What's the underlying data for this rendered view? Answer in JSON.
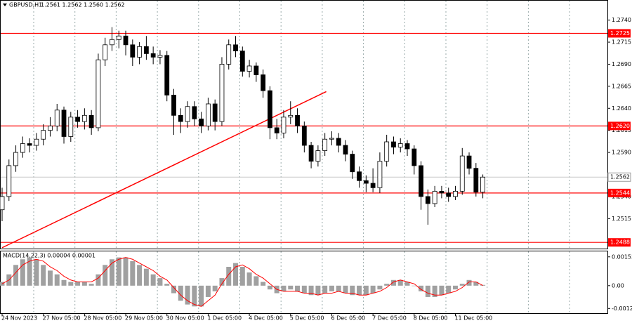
{
  "chart_data": [
    {
      "type": "candlestick",
      "title": "GBPUSD,H1",
      "quote": "1.2561 1.2562 1.2560 1.2562",
      "categories": [
        "24 Nov 2023",
        null,
        null,
        null,
        null,
        null,
        "27 Nov 05:00",
        null,
        null,
        null,
        null,
        null,
        "28 Nov 05:00",
        null,
        null,
        null,
        null,
        null,
        "29 Nov 05:00",
        null,
        null,
        null,
        null,
        null,
        "30 Nov 05:00",
        null,
        null,
        null,
        null,
        null,
        "1 Dec 05:00",
        null,
        null,
        null,
        null,
        null,
        "4 Dec 05:00",
        null,
        null,
        null,
        null,
        null,
        "5 Dec 05:00",
        null,
        null,
        null,
        null,
        null,
        "6 Dec 05:00",
        null,
        null,
        null,
        null,
        null,
        "7 Dec 05:00",
        null,
        null,
        null,
        null,
        null,
        "8 Dec 05:00",
        null,
        null,
        null,
        null,
        null,
        "11 Dec 05:00",
        null,
        null,
        null,
        null
      ],
      "open": [
        1.2525,
        1.254,
        1.2575,
        1.259,
        1.26,
        1.2598,
        1.2605,
        1.2615,
        1.262,
        1.2638,
        1.2608,
        1.263,
        1.2625,
        1.2632,
        1.2618,
        1.2695,
        1.2712,
        1.2718,
        1.2722,
        1.2712,
        1.2698,
        1.271,
        1.2702,
        1.2698,
        1.27,
        1.2655,
        1.2632,
        1.2625,
        1.2642,
        1.2628,
        1.262,
        1.2645,
        1.2625,
        1.269,
        1.2712,
        1.2705,
        1.2682,
        1.2688,
        1.2678,
        1.266,
        1.2618,
        1.2612,
        1.263,
        1.2632,
        1.262,
        1.2598,
        1.258,
        1.2592,
        1.2605,
        1.2606,
        1.2598,
        1.2588,
        1.2568,
        1.2558,
        1.2555,
        1.255,
        1.258,
        1.2602,
        1.2596,
        1.26,
        1.2594,
        1.2575,
        1.254,
        1.2532,
        1.2546,
        1.2544,
        1.254,
        1.2546,
        1.2586,
        1.2572,
        1.2545
      ],
      "high": [
        1.255,
        1.2582,
        1.2598,
        1.2608,
        1.2606,
        1.2612,
        1.2622,
        1.263,
        1.2645,
        1.2642,
        1.2636,
        1.2638,
        1.264,
        1.2638,
        1.2702,
        1.272,
        1.2732,
        1.2728,
        1.2728,
        1.2718,
        1.2715,
        1.2722,
        1.271,
        1.2706,
        1.2705,
        1.2662,
        1.264,
        1.2648,
        1.2648,
        1.2636,
        1.2652,
        1.265,
        1.2698,
        1.2718,
        1.2722,
        1.271,
        1.2695,
        1.2692,
        1.2684,
        1.2665,
        1.2628,
        1.2638,
        1.2648,
        1.264,
        1.2625,
        1.2602,
        1.2598,
        1.2612,
        1.2614,
        1.2612,
        1.2604,
        1.2592,
        1.2574,
        1.2564,
        1.2572,
        1.259,
        1.261,
        1.2608,
        1.2606,
        1.2604,
        1.2598,
        1.258,
        1.2548,
        1.2552,
        1.2552,
        1.255,
        1.2552,
        1.2595,
        1.259,
        1.2578,
        1.2565
      ],
      "low": [
        1.2512,
        1.2535,
        1.2568,
        1.2584,
        1.259,
        1.2592,
        1.2598,
        1.2608,
        1.2614,
        1.26,
        1.2602,
        1.2618,
        1.2616,
        1.261,
        1.2614,
        1.2688,
        1.2705,
        1.2708,
        1.27,
        1.2688,
        1.269,
        1.2695,
        1.269,
        1.269,
        1.2648,
        1.261,
        1.2612,
        1.2618,
        1.262,
        1.2612,
        1.2615,
        1.2615,
        1.262,
        1.2684,
        1.2698,
        1.2676,
        1.2675,
        1.267,
        1.2652,
        1.2605,
        1.2605,
        1.2606,
        1.2622,
        1.2612,
        1.259,
        1.2572,
        1.2574,
        1.2586,
        1.2598,
        1.259,
        1.258,
        1.256,
        1.255,
        1.2545,
        1.2545,
        1.2544,
        1.2574,
        1.2588,
        1.259,
        1.2586,
        1.2565,
        1.2525,
        1.2508,
        1.2528,
        1.2538,
        1.2534,
        1.2536,
        1.2542,
        1.2565,
        1.254,
        1.2538
      ],
      "close": [
        1.254,
        1.2575,
        1.259,
        1.26,
        1.2598,
        1.2605,
        1.2615,
        1.262,
        1.2638,
        1.2608,
        1.263,
        1.2625,
        1.2632,
        1.2618,
        1.2695,
        1.2712,
        1.2718,
        1.2722,
        1.2712,
        1.2698,
        1.271,
        1.2702,
        1.2698,
        1.27,
        1.2655,
        1.2632,
        1.2625,
        1.2642,
        1.2628,
        1.262,
        1.2645,
        1.2625,
        1.269,
        1.2712,
        1.2705,
        1.2682,
        1.2688,
        1.2678,
        1.266,
        1.2618,
        1.2612,
        1.263,
        1.2632,
        1.262,
        1.2598,
        1.258,
        1.2592,
        1.2605,
        1.2606,
        1.2598,
        1.2588,
        1.2568,
        1.2558,
        1.2555,
        1.255,
        1.258,
        1.2602,
        1.2596,
        1.26,
        1.2594,
        1.2575,
        1.254,
        1.2532,
        1.2546,
        1.2544,
        1.254,
        1.2546,
        1.2586,
        1.2572,
        1.2545,
        1.2562
      ],
      "up_color": "#ffffff",
      "down_color": "#000000",
      "ylim": [
        1.2481,
        1.2762
      ],
      "yticks": [
        {
          "value": 1.274,
          "label": "1.2740"
        },
        {
          "value": 1.2715,
          "label": "1.2715"
        },
        {
          "value": 1.269,
          "label": "1.2690"
        },
        {
          "value": 1.2665,
          "label": "1.2665"
        },
        {
          "value": 1.264,
          "label": "1.2640"
        },
        {
          "value": 1.2615,
          "label": "1.2615"
        },
        {
          "value": 1.259,
          "label": "1.2590"
        },
        {
          "value": 1.254,
          "label": "1.2540"
        },
        {
          "value": 1.2515,
          "label": "1.2515"
        }
      ],
      "levels": [
        {
          "value": 1.2725,
          "label": "1.2725"
        },
        {
          "value": 1.262,
          "label": "1.2620"
        },
        {
          "value": 1.2544,
          "label": "1.2544"
        },
        {
          "value": 1.2488,
          "label": "1.2488"
        }
      ],
      "level_color": "#ff0000",
      "current_price": {
        "value": 1.2562,
        "label": "1.2562"
      },
      "trendline": {
        "x": [
          0,
          47.2
        ],
        "y": [
          1.2482,
          1.2659
        ]
      }
    },
    {
      "type": "macd",
      "title": "MACD(14,22,3) 0.00004 0.00001",
      "histogram": [
        0.0002,
        0.0006,
        0.0011,
        0.0014,
        0.0015,
        0.0014,
        0.0011,
        0.0008,
        0.0006,
        0.0003,
        0.0002,
        0.0002,
        0.0002,
        0.0001,
        0.0006,
        0.0011,
        0.0014,
        0.0015,
        0.0015,
        0.0013,
        0.0011,
        0.0009,
        0.0006,
        0.0004,
        0.0001,
        -0.0004,
        -0.0008,
        -0.001,
        -0.0011,
        -0.0011,
        -0.0006,
        -0.0003,
        0.0004,
        0.001,
        0.0012,
        0.001,
        0.0007,
        0.0005,
        0.0002,
        -0.0002,
        -0.0004,
        -0.0003,
        -0.0002,
        -0.0003,
        -0.0004,
        -0.0005,
        -0.0005,
        -0.0004,
        -0.0003,
        -0.0003,
        -0.0004,
        -0.0005,
        -0.0005,
        -0.0005,
        -0.0004,
        -0.0002,
        0.0001,
        0.0003,
        0.0003,
        0.0002,
        0,
        -0.0003,
        -0.0006,
        -0.0006,
        -0.0005,
        -0.0004,
        -0.0002,
        0.0001,
        0.0003,
        0.0002,
        4e-05
      ],
      "signal": [
        0.0001,
        0.0003,
        0.0007,
        0.0011,
        0.0013,
        0.0014,
        0.0013,
        0.001,
        0.0008,
        0.0005,
        0.0003,
        0.0002,
        0.0002,
        0.0002,
        0.0004,
        0.0008,
        0.0012,
        0.0014,
        0.0015,
        0.0014,
        0.0012,
        0.001,
        0.0008,
        0.0005,
        0.0003,
        -0.0001,
        -0.0005,
        -0.0008,
        -0.001,
        -0.0011,
        -0.0008,
        -0.0005,
        0.0001,
        0.0006,
        0.001,
        0.0011,
        0.0009,
        0.0006,
        0.0004,
        0.0001,
        -0.0002,
        -0.0003,
        -0.0003,
        -0.0003,
        -0.0004,
        -0.0004,
        -0.0005,
        -0.0004,
        -0.0004,
        -0.0003,
        -0.0004,
        -0.0004,
        -0.0005,
        -0.0005,
        -0.0004,
        -0.0003,
        -0.0001,
        0.0002,
        0.0003,
        0.0002,
        0.0001,
        -0.0002,
        -0.0004,
        -0.0005,
        -0.0005,
        -0.0004,
        -0.0003,
        -0.0001,
        0.0002,
        0.0002,
        1e-05
      ],
      "histogram_color": "#a0a0a0",
      "signal_color": "#ff0000",
      "ylim": [
        -0.00146,
        0.00182
      ],
      "yticks": [
        0.00153,
        {
          "value": 0,
          "label": "0.00"
        },
        -0.00121
      ]
    }
  ]
}
